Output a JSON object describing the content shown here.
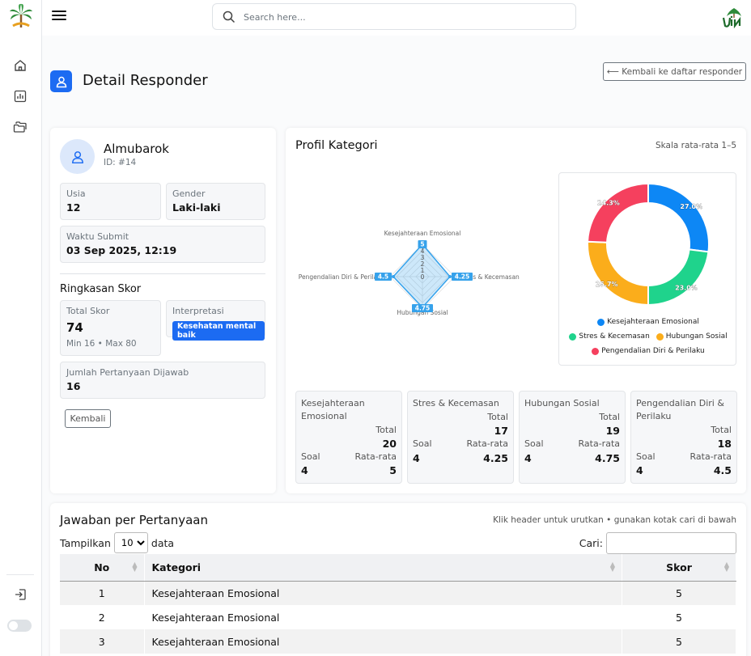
{
  "topbar": {
    "search_placeholder": "Search here..."
  },
  "page": {
    "title": "Detail Responder",
    "back_label": "⟵ Kembali ke daftar responder"
  },
  "profile": {
    "name": "Almubarok",
    "id_label": "ID: #14",
    "usia_label": "Usia",
    "usia": "12",
    "gender_label": "Gender",
    "gender": "Laki-laki",
    "waktu_label": "Waktu Submit",
    "waktu": "03 Sep 2025, 12:19",
    "ringkasan_title": "Ringkasan Skor",
    "total_label": "Total Skor",
    "total": "74",
    "minmax": "Min 16 • Max 80",
    "interp_label": "Interpretasi",
    "interp": "Kesehatan mental baik",
    "jumlah_label": "Jumlah Pertanyaan Dijawab",
    "jumlah": "16",
    "back_label": "Kembali"
  },
  "profil_kategori": {
    "title": "Profil Kategori",
    "scale": "Skala rata-rata 1–5"
  },
  "chart_data": [
    {
      "type": "radar",
      "categories": [
        "Kesejahteraan Emosional",
        "Stres & Kecemasan",
        "Hubungan Sosial",
        "Pengendalian Diri & Perilaku"
      ],
      "values": [
        5,
        4.25,
        4.75,
        4.5
      ],
      "value_labels": [
        "5",
        "4.25",
        "4.75",
        "4.5"
      ],
      "r_ticks": [
        "0",
        "1",
        "2",
        "3",
        "4"
      ],
      "rlim": [
        0,
        5
      ],
      "color": "#36a2eb"
    },
    {
      "type": "pie",
      "categories": [
        "Kesejahteraan Emosional",
        "Stres & Kecemasan",
        "Hubungan Sosial",
        "Pengendalian Diri & Perilaku"
      ],
      "values": [
        27.0,
        23.0,
        25.7,
        24.3
      ],
      "labels": [
        "27.0%",
        "23.0%",
        "25.7%",
        "24.3%"
      ],
      "colors": [
        "#0d87f5",
        "#1fd38c",
        "#fbad1b",
        "#f5405e"
      ],
      "legend": "bottom"
    }
  ],
  "categories": [
    {
      "name": "Kesejahteraan Emosional",
      "total_label": "Total",
      "total": "20",
      "soal_label": "Soal",
      "soal": "4",
      "rata_label": "Rata-rata",
      "rata": "5"
    },
    {
      "name": "Stres & Kecemasan",
      "total_label": "Total",
      "total": "17",
      "soal_label": "Soal",
      "soal": "4",
      "rata_label": "Rata-rata",
      "rata": "4.25"
    },
    {
      "name": "Hubungan Sosial",
      "total_label": "Total",
      "total": "19",
      "soal_label": "Soal",
      "soal": "4",
      "rata_label": "Rata-rata",
      "rata": "4.75"
    },
    {
      "name": "Pengendalian Diri & Perilaku",
      "total_label": "Total",
      "total": "18",
      "soal_label": "Soal",
      "soal": "4",
      "rata_label": "Rata-rata",
      "rata": "4.5"
    }
  ],
  "answers": {
    "title": "Jawaban per Pertanyaan",
    "hint": "Klik header untuk urutkan • gunakan kotak cari di bawah",
    "show_label": "Tampilkan",
    "show_value": "10",
    "data_label": "data",
    "search_label": "Cari:",
    "headers": [
      "No",
      "Kategori",
      "Skor"
    ],
    "rows": [
      {
        "no": "1",
        "kategori": "Kesejahteraan Emosional",
        "skor": "5"
      },
      {
        "no": "2",
        "kategori": "Kesejahteraan Emosional",
        "skor": "5"
      },
      {
        "no": "3",
        "kategori": "Kesejahteraan Emosional",
        "skor": "5"
      }
    ]
  }
}
